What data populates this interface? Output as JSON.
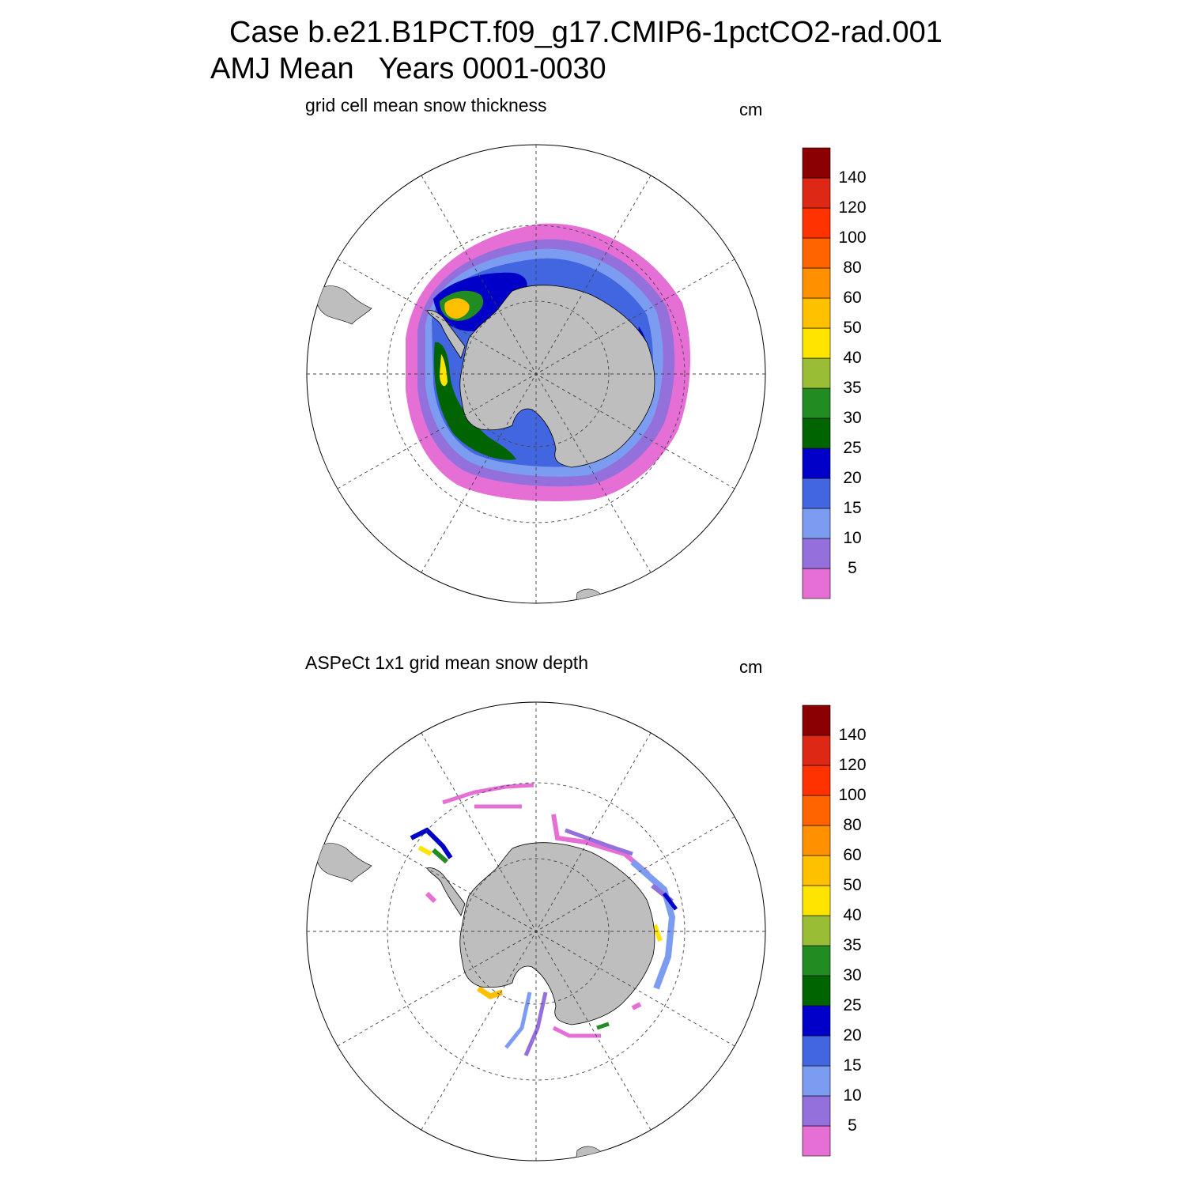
{
  "title": {
    "line1": "Case b.e21.B1PCT.f09_g17.CMIP6-1pctCO2-rad.001",
    "line2": "AMJ Mean   Years 0001-0030"
  },
  "panels": [
    {
      "subtitle": "grid cell mean snow thickness",
      "units": "cm"
    },
    {
      "subtitle": "ASPeCt 1x1 grid mean snow depth",
      "units": "cm"
    }
  ],
  "colorbar": {
    "tick_labels": [
      "5",
      "10",
      "15",
      "20",
      "25",
      "30",
      "35",
      "40",
      "50",
      "60",
      "80",
      "100",
      "120",
      "140"
    ],
    "colors": [
      "#e66fd6",
      "#9370db",
      "#7b9cf0",
      "#4166e0",
      "#0000c8",
      "#006400",
      "#228b22",
      "#9abd36",
      "#ffe400",
      "#ffc000",
      "#ff9000",
      "#ff6400",
      "#ff3200",
      "#dc2814",
      "#8b0000"
    ]
  },
  "map": {
    "land_color": "#bebebe",
    "projection": "south-polar-stereographic"
  },
  "chart_data": [
    {
      "type": "heatmap",
      "title": "grid cell mean snow thickness",
      "units": "cm",
      "levels": [
        5,
        10,
        15,
        20,
        25,
        30,
        35,
        40,
        50,
        60,
        80,
        100,
        120,
        140
      ],
      "description_fields": [
        "sea ice snow thickness around Antarctica; thickest (40-60) in Weddell Sea, 25-35 along Bellingshausen/Antarctic Peninsula, mostly 5-20 elsewhere"
      ]
    },
    {
      "type": "heatmap",
      "title": "ASPeCt 1x1 grid mean snow depth",
      "units": "cm",
      "levels": [
        5,
        10,
        15,
        20,
        25,
        30,
        35,
        40,
        50,
        60,
        80,
        100,
        120,
        140
      ]
    }
  ]
}
